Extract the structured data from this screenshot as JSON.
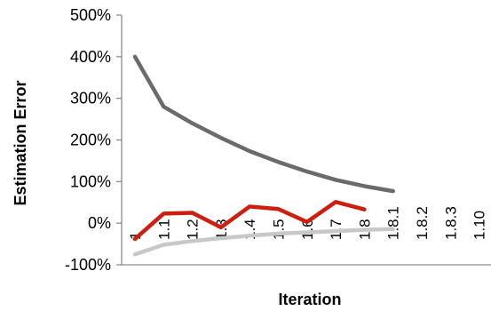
{
  "chart_data": {
    "type": "line",
    "title": "",
    "xlabel": "Iteration",
    "ylabel": "Estimation Error",
    "categories": [
      "1",
      "1.1",
      "1.2",
      "1.3",
      "1.4",
      "1.5",
      "1.6",
      "1.7",
      "1.8",
      "1.8.1",
      "1.8.2",
      "1.8.3",
      "1.10"
    ],
    "ylim": [
      -100,
      500
    ],
    "yticks": [
      "500%",
      "400%",
      "300%",
      "200%",
      "100%",
      "0%",
      "-100%"
    ],
    "grid": false,
    "legend": "none",
    "series": [
      {
        "color": "#6b6b6b",
        "values": [
          400,
          280,
          240,
          205,
          173,
          147,
          124,
          104,
          89,
          77,
          null,
          null,
          null
        ]
      },
      {
        "color": "#cc1f10",
        "values": [
          -38,
          23,
          25,
          -10,
          40,
          34,
          3,
          51,
          33,
          null,
          null,
          null,
          null
        ]
      },
      {
        "color": "#c8c8c8",
        "values": [
          -75,
          -52,
          -43,
          -36,
          -30,
          -25,
          -22,
          -19,
          -16,
          -14,
          null,
          null,
          null
        ]
      }
    ]
  }
}
